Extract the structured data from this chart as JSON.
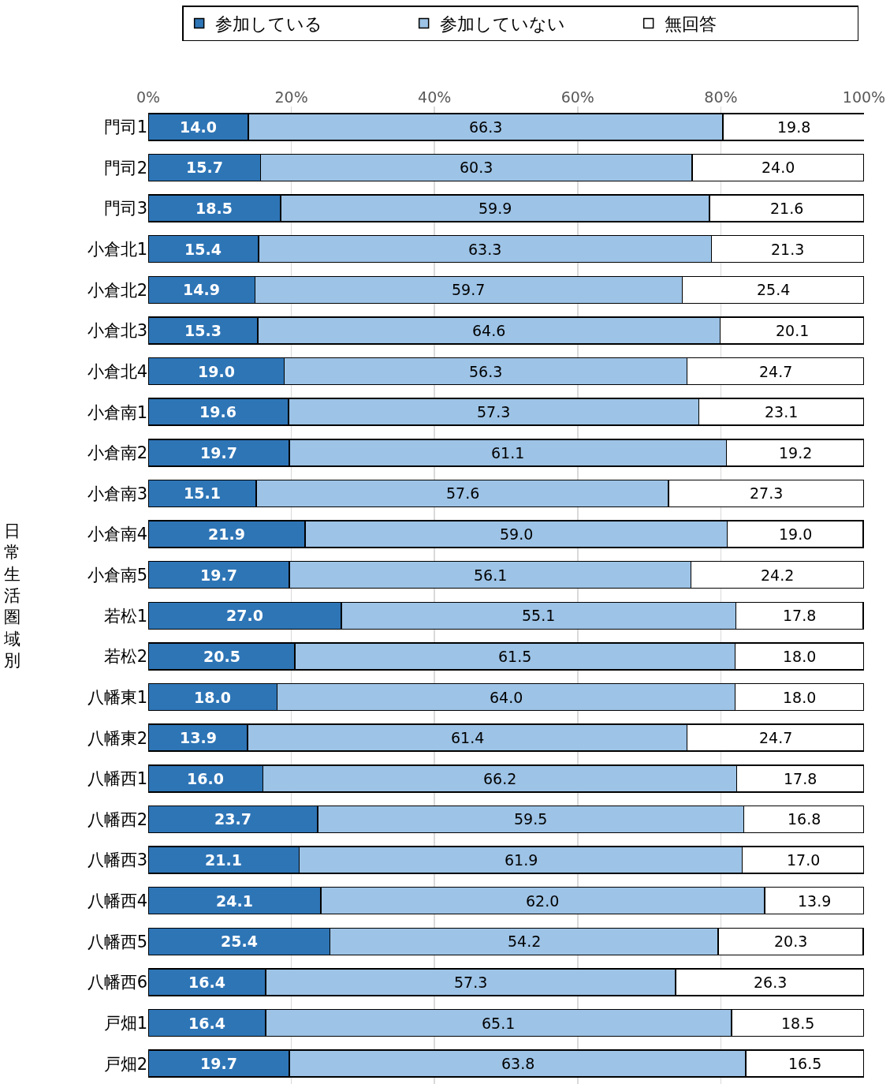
{
  "chart_data": {
    "type": "bar",
    "orientation": "horizontal",
    "stacked": true,
    "ylabel": "日常生活圏域別",
    "categories": [
      "門司1",
      "門司2",
      "門司3",
      "小倉北1",
      "小倉北2",
      "小倉北3",
      "小倉北4",
      "小倉南1",
      "小倉南2",
      "小倉南3",
      "小倉南4",
      "小倉南5",
      "若松1",
      "若松2",
      "八幡東1",
      "八幡東2",
      "八幡西1",
      "八幡西2",
      "八幡西3",
      "八幡西4",
      "八幡西5",
      "八幡西6",
      "戸畑1",
      "戸畑2"
    ],
    "series": [
      {
        "name": "参加している",
        "color": "#2e75b6",
        "values": [
          14.0,
          15.7,
          18.5,
          15.4,
          14.9,
          15.3,
          19.0,
          19.6,
          19.7,
          15.1,
          21.9,
          19.7,
          27.0,
          20.5,
          18.0,
          13.9,
          16.0,
          23.7,
          21.1,
          24.1,
          25.4,
          16.4,
          16.4,
          19.7
        ],
        "value_labels": [
          "14.0",
          "15.7",
          "18.5",
          "15.4",
          "14.9",
          "15.3",
          "19.0",
          "19.6",
          "19.7",
          "15.1",
          "21.9",
          "19.7",
          "27.0",
          "20.5",
          "18.0",
          "13.9",
          "16.0",
          "23.7",
          "21.1",
          "24.1",
          "25.4",
          "16.4",
          "16.4",
          "19.7"
        ]
      },
      {
        "name": "参加していない",
        "color": "#9dc3e6",
        "values": [
          66.3,
          60.3,
          59.9,
          63.3,
          59.7,
          64.6,
          56.3,
          57.3,
          61.1,
          57.6,
          59.0,
          56.1,
          55.1,
          61.5,
          64.0,
          61.4,
          66.2,
          59.5,
          61.9,
          62.0,
          54.2,
          57.3,
          65.1,
          63.8
        ],
        "value_labels": [
          "66.3",
          "60.3",
          "59.9",
          "63.3",
          "59.7",
          "64.6",
          "56.3",
          "57.3",
          "61.1",
          "57.6",
          "59.0",
          "56.1",
          "55.1",
          "61.5",
          "64.0",
          "61.4",
          "66.2",
          "59.5",
          "61.9",
          "62.0",
          "54.2",
          "57.3",
          "65.1",
          "63.8"
        ]
      },
      {
        "name": "無回答",
        "color": "#ffffff",
        "values": [
          19.8,
          24.0,
          21.6,
          21.3,
          25.4,
          20.1,
          24.7,
          23.1,
          19.2,
          27.3,
          19.0,
          24.2,
          17.8,
          18.0,
          18.0,
          24.7,
          17.8,
          16.8,
          17.0,
          13.9,
          20.3,
          26.3,
          18.5,
          16.5
        ],
        "value_labels": [
          "19.8",
          "24.0",
          "21.6",
          "21.3",
          "25.4",
          "20.1",
          "24.7",
          "23.1",
          "19.2",
          "27.3",
          "19.0",
          "24.2",
          "17.8",
          "18.0",
          "18.0",
          "24.7",
          "17.8",
          "16.8",
          "17.0",
          "13.9",
          "20.3",
          "26.3",
          "18.5",
          "16.5"
        ]
      }
    ],
    "xlim": [
      0,
      100
    ],
    "xticks": [
      {
        "value": 0,
        "label": "0%"
      },
      {
        "value": 20,
        "label": "20%"
      },
      {
        "value": 40,
        "label": "40%"
      },
      {
        "value": 60,
        "label": "60%"
      },
      {
        "value": 80,
        "label": "80%"
      },
      {
        "value": 100,
        "label": "100%"
      }
    ],
    "grid": "x",
    "legend": "top"
  }
}
